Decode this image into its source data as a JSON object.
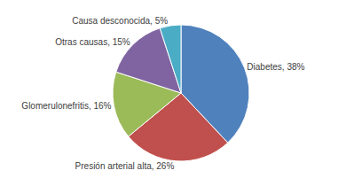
{
  "chart_data": {
    "type": "pie",
    "categories": [
      "Diabetes",
      "Presión arterial alta",
      "Glomerulonefritis",
      "Otras causas",
      "Causa desconocida"
    ],
    "values": [
      38,
      26,
      16,
      15,
      5
    ],
    "value_labels": [
      "Diabetes, 38%",
      "Presión arterial alta, 26%",
      "Glomerulonefritis, 16%",
      "Otras causas, 15%",
      "Causa desconocida, 5%"
    ],
    "colors": [
      "#4f81bd",
      "#c0504d",
      "#9bbb59",
      "#8064a2",
      "#4bacc6"
    ],
    "data_labels": true
  }
}
